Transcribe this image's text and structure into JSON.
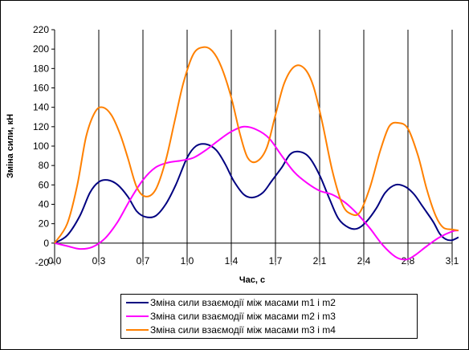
{
  "chart_data": {
    "type": "line",
    "title": "",
    "xlabel": "Час, с",
    "ylabel": "Зміна сили, кН",
    "xlim": [
      0,
      3.15
    ],
    "ylim": [
      -20,
      220
    ],
    "x_ticks": [
      {
        "value": 0.0,
        "label": "0,0"
      },
      {
        "value": 0.35,
        "label": "0,3"
      },
      {
        "value": 0.7,
        "label": "0,7"
      },
      {
        "value": 1.05,
        "label": "1,0"
      },
      {
        "value": 1.4,
        "label": "1,4"
      },
      {
        "value": 1.75,
        "label": "1,7"
      },
      {
        "value": 2.1,
        "label": "2,1"
      },
      {
        "value": 2.45,
        "label": "2,4"
      },
      {
        "value": 2.8,
        "label": "2,8"
      },
      {
        "value": 3.15,
        "label": "3,1"
      }
    ],
    "y_ticks": [
      -20,
      0,
      20,
      40,
      60,
      80,
      100,
      120,
      140,
      160,
      180,
      200,
      220
    ],
    "grid": "vertical",
    "legend_position": "bottom",
    "series": [
      {
        "name": "Зміна сили взаємодії між масами m1 і m2",
        "color": "#000080",
        "points": [
          [
            0.0,
            0
          ],
          [
            0.1,
            8
          ],
          [
            0.2,
            28
          ],
          [
            0.28,
            52
          ],
          [
            0.35,
            63
          ],
          [
            0.42,
            65
          ],
          [
            0.5,
            60
          ],
          [
            0.58,
            48
          ],
          [
            0.65,
            33
          ],
          [
            0.72,
            27
          ],
          [
            0.8,
            28
          ],
          [
            0.88,
            40
          ],
          [
            0.96,
            60
          ],
          [
            1.05,
            88
          ],
          [
            1.12,
            100
          ],
          [
            1.2,
            102
          ],
          [
            1.28,
            96
          ],
          [
            1.35,
            82
          ],
          [
            1.42,
            64
          ],
          [
            1.5,
            50
          ],
          [
            1.57,
            47
          ],
          [
            1.65,
            52
          ],
          [
            1.72,
            64
          ],
          [
            1.8,
            78
          ],
          [
            1.87,
            92
          ],
          [
            1.95,
            94
          ],
          [
            2.02,
            88
          ],
          [
            2.1,
            70
          ],
          [
            2.18,
            45
          ],
          [
            2.25,
            25
          ],
          [
            2.33,
            16
          ],
          [
            2.4,
            15
          ],
          [
            2.47,
            22
          ],
          [
            2.55,
            36
          ],
          [
            2.62,
            52
          ],
          [
            2.7,
            60
          ],
          [
            2.78,
            58
          ],
          [
            2.85,
            50
          ],
          [
            2.92,
            37
          ],
          [
            3.0,
            22
          ],
          [
            3.05,
            10
          ],
          [
            3.1,
            4
          ],
          [
            3.15,
            3
          ],
          [
            3.2,
            6
          ]
        ]
      },
      {
        "name": "Зміна сили взаємодії між масами m2 і m3",
        "color": "#ff00ff",
        "points": [
          [
            0.0,
            0
          ],
          [
            0.1,
            -3
          ],
          [
            0.2,
            -6
          ],
          [
            0.3,
            -4
          ],
          [
            0.4,
            5
          ],
          [
            0.5,
            22
          ],
          [
            0.6,
            45
          ],
          [
            0.7,
            65
          ],
          [
            0.8,
            78
          ],
          [
            0.9,
            83
          ],
          [
            1.0,
            85
          ],
          [
            1.1,
            88
          ],
          [
            1.2,
            96
          ],
          [
            1.3,
            106
          ],
          [
            1.4,
            115
          ],
          [
            1.5,
            120
          ],
          [
            1.6,
            117
          ],
          [
            1.7,
            108
          ],
          [
            1.8,
            90
          ],
          [
            1.9,
            73
          ],
          [
            2.0,
            62
          ],
          [
            2.1,
            54
          ],
          [
            2.2,
            50
          ],
          [
            2.3,
            42
          ],
          [
            2.4,
            30
          ],
          [
            2.5,
            15
          ],
          [
            2.6,
            -2
          ],
          [
            2.7,
            -14
          ],
          [
            2.78,
            -17
          ],
          [
            2.85,
            -13
          ],
          [
            2.95,
            -3
          ],
          [
            3.05,
            6
          ],
          [
            3.15,
            12
          ],
          [
            3.2,
            13
          ]
        ]
      },
      {
        "name": "Зміна сили взаємодії між масами m3 і m4",
        "color": "#ff8000",
        "points": [
          [
            0.0,
            0
          ],
          [
            0.1,
            20
          ],
          [
            0.18,
            60
          ],
          [
            0.25,
            110
          ],
          [
            0.32,
            135
          ],
          [
            0.38,
            140
          ],
          [
            0.45,
            132
          ],
          [
            0.52,
            112
          ],
          [
            0.58,
            88
          ],
          [
            0.65,
            58
          ],
          [
            0.72,
            48
          ],
          [
            0.8,
            55
          ],
          [
            0.88,
            85
          ],
          [
            0.95,
            125
          ],
          [
            1.02,
            165
          ],
          [
            1.1,
            195
          ],
          [
            1.18,
            202
          ],
          [
            1.25,
            198
          ],
          [
            1.32,
            182
          ],
          [
            1.4,
            150
          ],
          [
            1.47,
            112
          ],
          [
            1.53,
            88
          ],
          [
            1.6,
            84
          ],
          [
            1.68,
            98
          ],
          [
            1.75,
            132
          ],
          [
            1.82,
            165
          ],
          [
            1.9,
            182
          ],
          [
            1.98,
            180
          ],
          [
            2.05,
            162
          ],
          [
            2.12,
            125
          ],
          [
            2.2,
            75
          ],
          [
            2.28,
            40
          ],
          [
            2.35,
            30
          ],
          [
            2.42,
            32
          ],
          [
            2.5,
            58
          ],
          [
            2.58,
            95
          ],
          [
            2.65,
            120
          ],
          [
            2.72,
            124
          ],
          [
            2.8,
            118
          ],
          [
            2.88,
            90
          ],
          [
            2.95,
            55
          ],
          [
            3.02,
            28
          ],
          [
            3.08,
            16
          ],
          [
            3.15,
            14
          ],
          [
            3.2,
            13
          ]
        ]
      }
    ]
  }
}
